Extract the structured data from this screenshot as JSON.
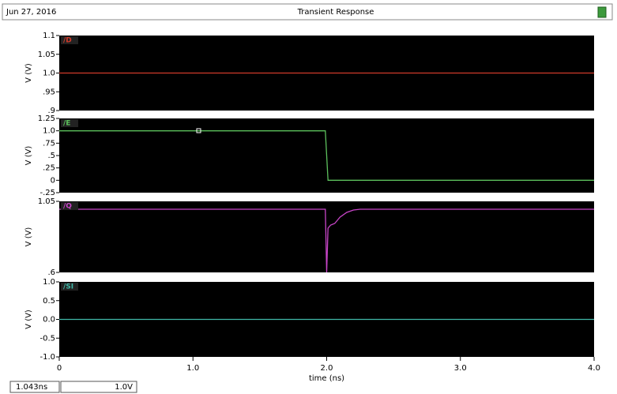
{
  "header": {
    "date": "Jun 27, 2016",
    "title": "Transient Response"
  },
  "footer": {
    "x_readout": "1.043ns",
    "y_readout": "1.0V"
  },
  "chart_data": [
    {
      "type": "line",
      "ylabel": "V (V)",
      "xlim": [
        0,
        4
      ],
      "ylim": [
        0.9,
        1.1
      ],
      "yticks": [
        {
          "value": 0.9,
          "label": ".9"
        },
        {
          "value": 0.95,
          "label": ".95"
        },
        {
          "value": 1,
          "label": "1.0"
        },
        1.05,
        1.1
      ],
      "x": [
        0,
        4
      ],
      "series": [
        {
          "name": "/D",
          "color": "#d23a2a",
          "values": [
            1,
            1
          ]
        }
      ]
    },
    {
      "type": "line",
      "ylabel": "V (V)",
      "xlim": [
        0,
        4
      ],
      "ylim": [
        -0.25,
        1.25
      ],
      "yticks": [
        {
          "value": -0.25,
          "label": "-.25"
        },
        0,
        {
          "value": 0.25,
          "label": ".25"
        },
        {
          "value": 0.5,
          "label": ".5"
        },
        {
          "value": 0.75,
          "label": ".75"
        },
        {
          "value": 1,
          "label": "1.0"
        },
        1.25
      ],
      "x": [
        0,
        1.99,
        2.0,
        2.01,
        4
      ],
      "series": [
        {
          "name": "/E",
          "color": "#5cc05c",
          "values": [
            1,
            1,
            0.5,
            0,
            0
          ]
        }
      ]
    },
    {
      "type": "line",
      "ylabel": "V (V)",
      "xlim": [
        0,
        4
      ],
      "ylim": [
        0.6,
        1.05
      ],
      "yticks": [
        {
          "value": 0.6,
          "label": ".6"
        },
        1.05
      ],
      "x": [
        0,
        1.99,
        2.0,
        2.01,
        2.03,
        2.06,
        2.1,
        2.15,
        2.2,
        2.25,
        4
      ],
      "series": [
        {
          "name": "/Q",
          "color": "#c845c8",
          "values": [
            1.0,
            1.0,
            0.6,
            0.88,
            0.9,
            0.91,
            0.95,
            0.98,
            0.995,
            1.0,
            1.0
          ]
        }
      ]
    },
    {
      "type": "line",
      "ylabel": "V (V)",
      "xlim": [
        0,
        4
      ],
      "ylim": [
        -1,
        1
      ],
      "yticks": [
        {
          "value": -1,
          "label": "-1.0"
        },
        {
          "value": -0.5,
          "label": "-0.5"
        },
        {
          "value": 0,
          "label": "0.0"
        },
        0.5,
        {
          "value": 1,
          "label": "1.0"
        }
      ],
      "x": [
        0,
        4
      ],
      "series": [
        {
          "name": "/SI",
          "color": "#40b8a8",
          "values": [
            0,
            0
          ]
        }
      ],
      "xticks": [
        0,
        {
          "value": 1,
          "label": "1.0"
        },
        {
          "value": 2,
          "label": "2.0"
        },
        {
          "value": 3,
          "label": "3.0"
        },
        {
          "value": 4,
          "label": "4.0"
        }
      ],
      "xlabel": "time (ns)"
    }
  ]
}
